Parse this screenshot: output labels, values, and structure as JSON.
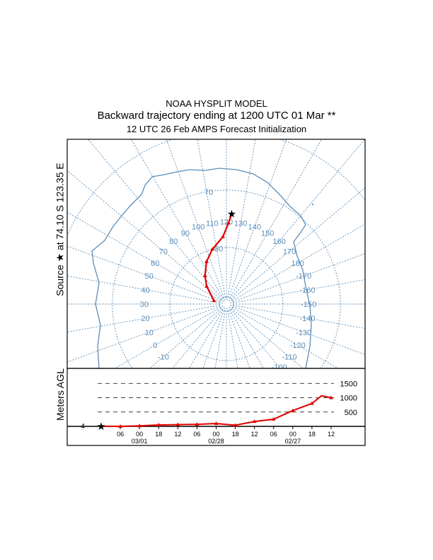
{
  "title": {
    "line1": "NOAA HYSPLIT MODEL",
    "line2": "Backward trajectory ending at 1200 UTC 01 Mar **",
    "line3": "12 UTC 26 Feb     AMPS  Forecast Initialization"
  },
  "source_label": "Source ★ at  74.10 S  123.35 E",
  "colors": {
    "map": "#5b8db8",
    "trajectory": "#e00000",
    "frame": "#000000"
  },
  "chart_data": [
    {
      "type": "map-trajectory",
      "projection": "south polar stereographic",
      "source": {
        "lat": -74.1,
        "lon": 123.35
      },
      "lat_rings": [
        -80,
        -70,
        -60,
        -50
      ],
      "lat_ring_labels": [
        "80",
        "70"
      ],
      "lon_labels": [
        "-10",
        "0",
        "10",
        "20",
        "30",
        "40",
        "50",
        "60",
        "70",
        "80",
        "90",
        "100",
        "110",
        "120",
        "130",
        "140",
        "150",
        "160",
        "170",
        "180",
        "-170",
        "-160",
        "-150",
        "-140",
        "-130",
        "-120",
        "-110",
        "-100"
      ],
      "track": [
        {
          "lat": -74.1,
          "lon": 123.35
        },
        {
          "lat": -75.7,
          "lon": 121.5
        },
        {
          "lat": -78.1,
          "lon": 117
        },
        {
          "lat": -80.0,
          "lon": 105.6
        },
        {
          "lat": -81.7,
          "lon": 95
        },
        {
          "lat": -83.7,
          "lon": 83
        },
        {
          "lat": -85.3,
          "lon": 72
        },
        {
          "lat": -87.7,
          "lon": 45.5
        }
      ]
    },
    {
      "type": "line",
      "ylabel": "Meters AGL",
      "source_height_label": "4",
      "yticks": [
        {
          "v": 500,
          "label": "500"
        },
        {
          "v": 1000,
          "label": "1000"
        },
        {
          "v": 1500,
          "label": "1500"
        }
      ],
      "ylim": [
        0,
        1600
      ],
      "xticks": [
        "06",
        "00",
        "18",
        "12",
        "06",
        "00",
        "18",
        "12",
        "06",
        "00",
        "18",
        "12"
      ],
      "dates": [
        {
          "tick_index": 1,
          "label": "03/01"
        },
        {
          "tick_index": 5,
          "label": "02/28"
        },
        {
          "tick_index": 9,
          "label": "02/27"
        }
      ],
      "hours_back": [
        0,
        6,
        12,
        18,
        24,
        30,
        36,
        42,
        48,
        54,
        60,
        66,
        72
      ],
      "heights": [
        4,
        0,
        20,
        50,
        60,
        70,
        100,
        40,
        170,
        250,
        550,
        800,
        1000
      ],
      "peak": {
        "hours_back": 69,
        "height": 1070
      }
    }
  ]
}
